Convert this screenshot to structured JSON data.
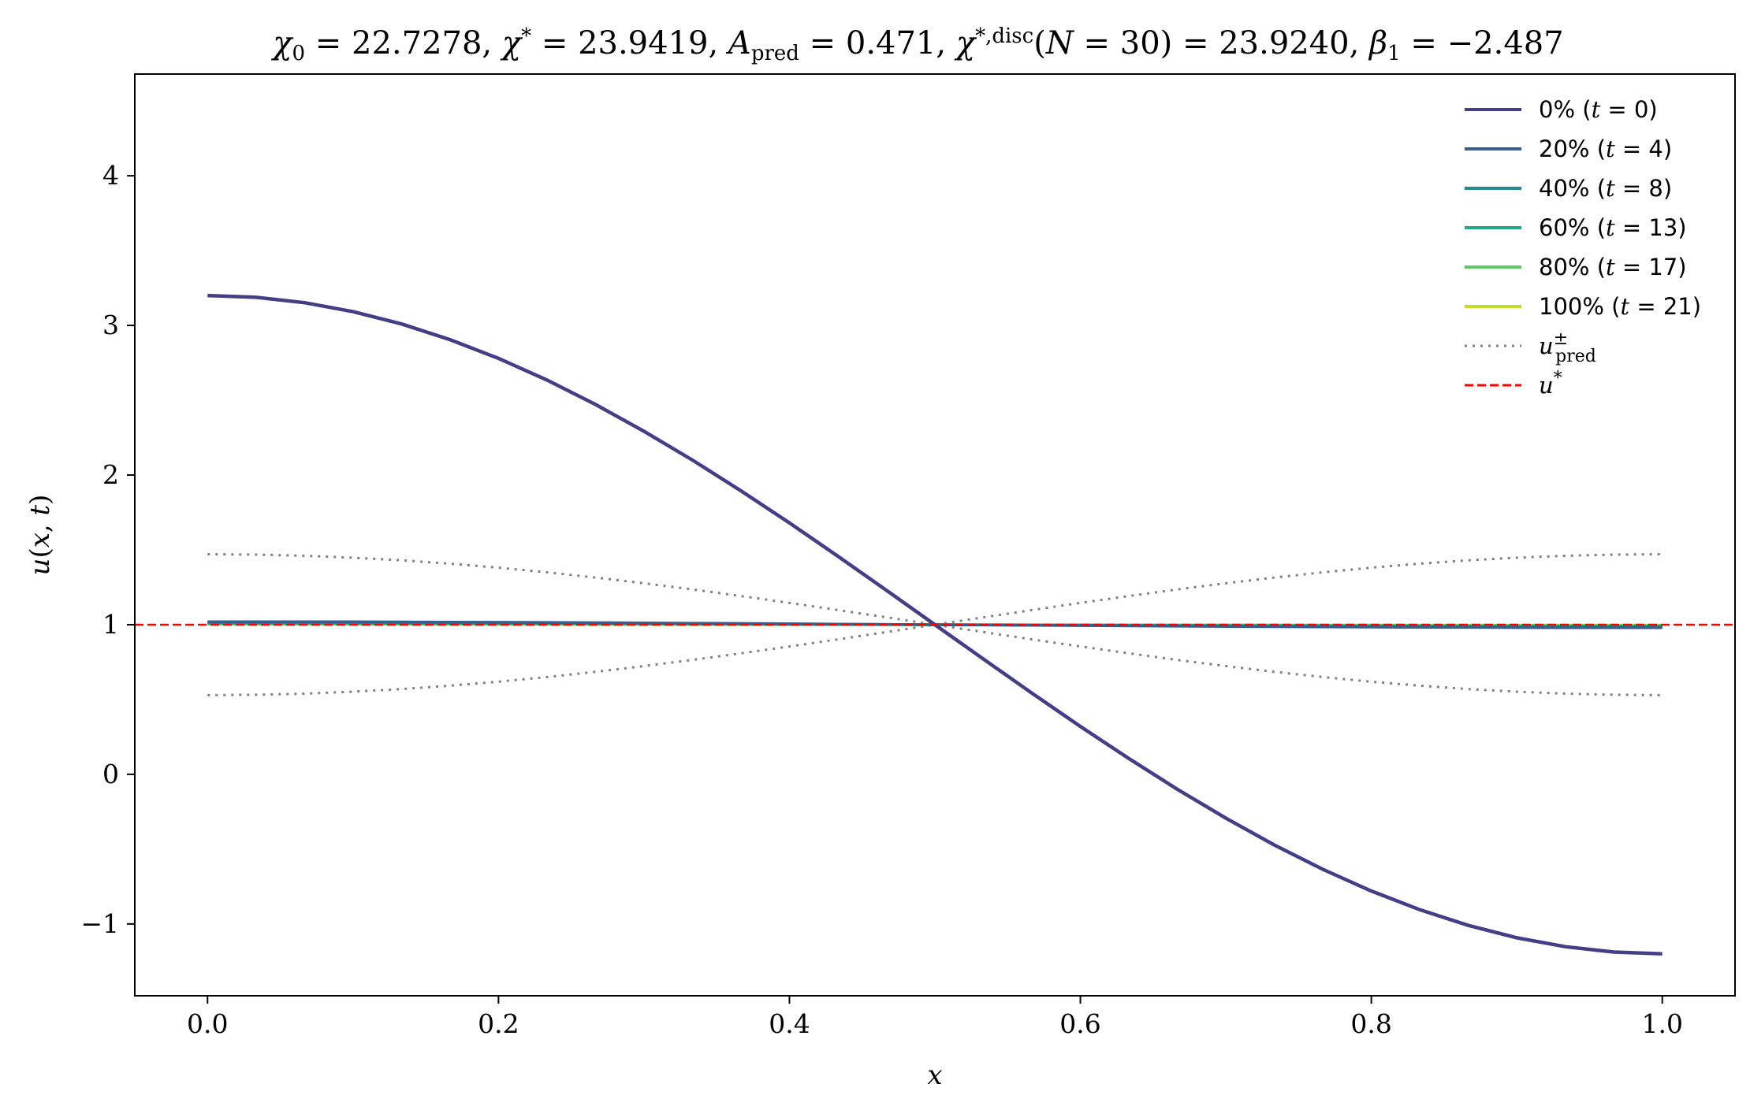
{
  "chart_data": {
    "type": "line",
    "title": "χ₀ = 22.7278,  χ* = 23.9419,  A_pred = 0.471,  χ*,disc(N = 30) = 23.9240,  β₁ = −2.487",
    "xlabel": "x",
    "ylabel": "u(x, t)",
    "xlim": [
      -0.05,
      1.05
    ],
    "ylim": [
      -1.48,
      4.68
    ],
    "xticks": [
      0.0,
      0.2,
      0.4,
      0.6,
      0.8,
      1.0
    ],
    "xtick_labels": [
      "0.0",
      "0.2",
      "0.4",
      "0.6",
      "0.8",
      "1.0"
    ],
    "yticks": [
      -1,
      0,
      1,
      2,
      3,
      4
    ],
    "ytick_labels": [
      "−1",
      "0",
      "1",
      "2",
      "3",
      "4"
    ],
    "grid": false,
    "legend_position": "top-right",
    "series": [
      {
        "name": "0% (t = 0)",
        "label": "0%",
        "time": "(t = 0)",
        "color": "#433e85",
        "style": "solid",
        "amplitude": 2.2
      },
      {
        "name": "20% (t = 4)",
        "label": "20%",
        "time": "(t = 4)",
        "color": "#355f8d",
        "style": "solid",
        "amplitude": 0.02
      },
      {
        "name": "40% (t = 8)",
        "label": "40%",
        "time": "(t = 8)",
        "color": "#23888e",
        "style": "solid",
        "amplitude": 0.015
      },
      {
        "name": "60% (t = 13)",
        "label": "60%",
        "time": "(t = 13)",
        "color": "#22a884",
        "style": "solid",
        "amplitude": 0.01
      },
      {
        "name": "80% (t = 17)",
        "label": "80%",
        "time": "(t = 17)",
        "color": "#5ec962",
        "style": "solid",
        "amplitude": 0.006
      },
      {
        "name": "100% (t = 21)",
        "label": "100%",
        "time": "(t = 21)",
        "color": "#bddf26",
        "style": "solid",
        "amplitude": 0.003
      },
      {
        "name": "u±pred",
        "label": "u",
        "sup": "±",
        "sub": "pred",
        "color": "#808080",
        "style": "dotted",
        "amplitude": 0.471
      },
      {
        "name": "u*",
        "label": "u",
        "sup": "*",
        "color": "#ff0000",
        "style": "dashed",
        "value": 1.0
      }
    ],
    "profile": "u(x) = 1 + A·cos(πx)",
    "n_points": 31
  }
}
